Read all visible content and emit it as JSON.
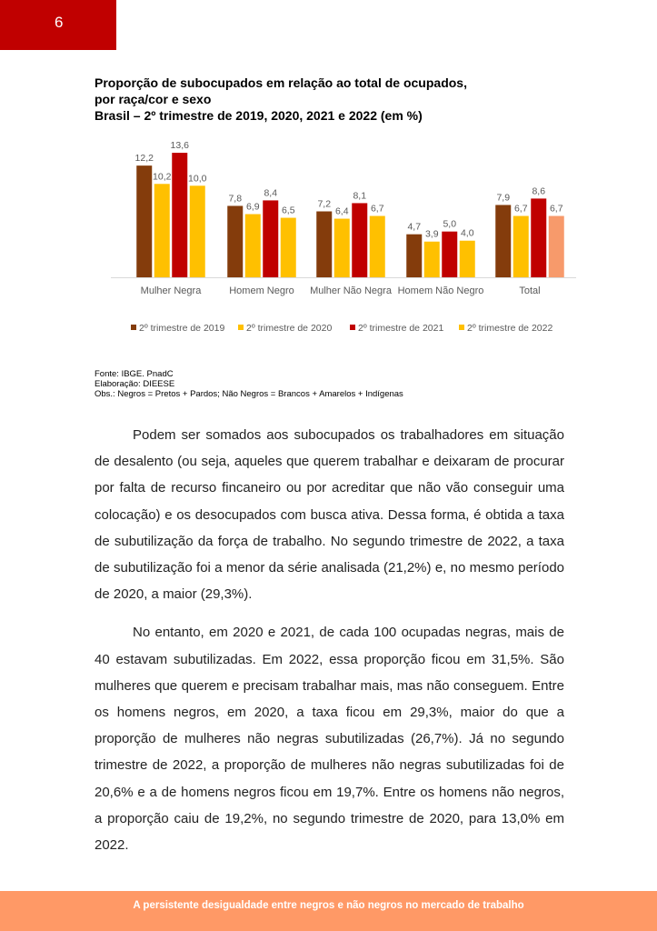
{
  "header": {
    "page_number": "6",
    "color": "#C00000"
  },
  "title": {
    "line1": "Proporção de subocupados em relação ao total de ocupados,",
    "line2": "por raça/cor e sexo",
    "line3": "Brasil – 2º trimestre de 2019, 2020, 2021 e 2022 (em %)"
  },
  "chart_data": {
    "type": "bar",
    "categories": [
      "Mulher Negra",
      "Homem Negro",
      "Mulher Não Negra",
      "Homem Não Negro",
      "Total"
    ],
    "series": [
      {
        "name": "2º trimestre de 2019",
        "color": "#843C0C",
        "values": [
          12.2,
          7.8,
          7.2,
          4.7,
          7.9
        ]
      },
      {
        "name": "2º trimestre de 2020",
        "color": "#FFC000",
        "values": [
          10.2,
          6.9,
          6.4,
          3.9,
          6.7
        ]
      },
      {
        "name": "2º trimestre de 2021",
        "color": "#C00000",
        "values": [
          13.6,
          8.4,
          8.1,
          5.0,
          8.6
        ]
      },
      {
        "name": "2º trimestre de 2022",
        "color": "#FFC000",
        "values": [
          10.0,
          6.5,
          6.7,
          4.0,
          6.7
        ],
        "total_bar_color": "#F79A6B"
      }
    ],
    "data_labels": [
      [
        "12,2",
        "7,8",
        "7,2",
        "4,7",
        "7,9"
      ],
      [
        "10,2",
        "6,9",
        "6,4",
        "3,9",
        "6,7"
      ],
      [
        "13,6",
        "8,4",
        "8,1",
        "5,0",
        "8,6"
      ],
      [
        "10,0",
        "6,5",
        "6,7",
        "4,0",
        "6,7"
      ]
    ],
    "ylim": [
      0,
      14
    ],
    "grid": false,
    "legend": "bottom"
  },
  "notes": {
    "source": "Fonte: IBGE. PnadC",
    "elaboration": "Elaboração: DIEESE",
    "obs": "Obs.: Negros = Pretos + Pardos; Não Negros = Brancos + Amarelos + Indígenas"
  },
  "body": {
    "paragraphs": [
      "Podem ser somados aos subocupados os trabalhadores em situação de desalento (ou seja, aqueles que querem trabalhar e deixaram de procurar por falta de recurso fincaneiro ou por acreditar que não vão conseguir uma colocação) e os desocupados com busca ativa. Dessa forma, é obtida  a taxa de subutilização da força de trabalho. No segundo trimestre de 2022, a taxa de subutilização foi a menor da série analisada (21,2%) e, no mesmo período de 2020, a maior (29,3%).",
      "No entanto, em 2020 e 2021, de cada 100 ocupadas negras, mais de 40 estavam subutilizadas. Em 2022, essa proporção ficou em 31,5%. São mulheres que querem e precisam trabalhar mais, mas não conseguem. Entre os homens negros, em 2020, a taxa ficou em 29,3%, maior do que a proporção de mulheres não negras subutilizadas (26,7%). Já no segundo trimestre de 2022, a proporção de mulheres não negras subutilizadas foi de 20,6% e a de homens negros ficou em 19,7%. Entre os homens não negros, a proporção caiu de 19,2%, no segundo trimestre de 2020, para 13,0% em 2022."
    ]
  },
  "footer": {
    "text": "A persistente desigualdade entre negros e não negros no mercado de trabalho",
    "color": "#FF9966"
  }
}
